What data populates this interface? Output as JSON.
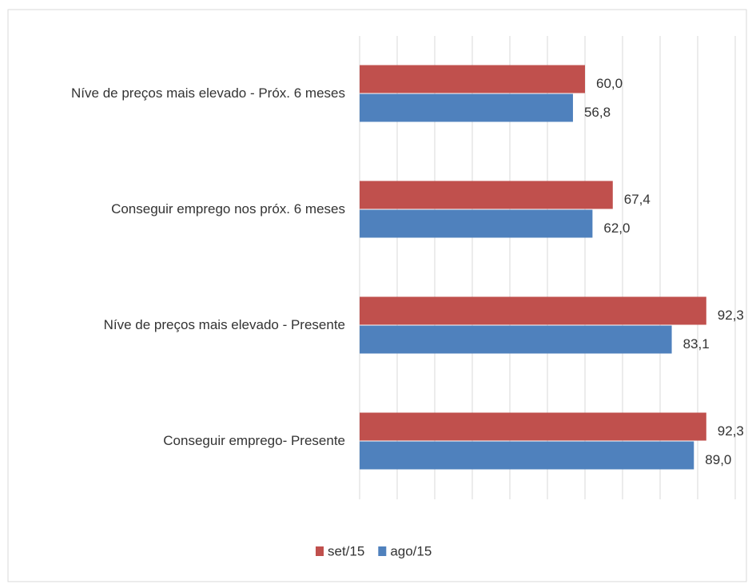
{
  "chart_data": {
    "type": "hbar",
    "categories": [
      "Níve de preços mais elevado - Próx. 6 meses",
      "Conseguir emprego nos próx. 6 meses",
      "Níve de preços mais elevado - Presente",
      "Conseguir emprego- Presente"
    ],
    "series": [
      {
        "name": "set/15",
        "color": "#c0504d",
        "values": [
          60.0,
          67.4,
          92.3,
          92.3
        ],
        "value_labels": [
          "60,0",
          "67,4",
          "92,3",
          "92,3"
        ]
      },
      {
        "name": "ago/15",
        "color": "#4f81bd",
        "values": [
          56.8,
          62.0,
          83.1,
          89.0
        ],
        "value_labels": [
          "56,8",
          "62,0",
          "83,1",
          "89,0"
        ]
      }
    ],
    "xlim": [
      0,
      100
    ],
    "xticks": [
      0,
      10,
      20,
      30,
      40,
      50,
      60,
      70,
      80,
      90,
      100
    ],
    "grid": true
  }
}
